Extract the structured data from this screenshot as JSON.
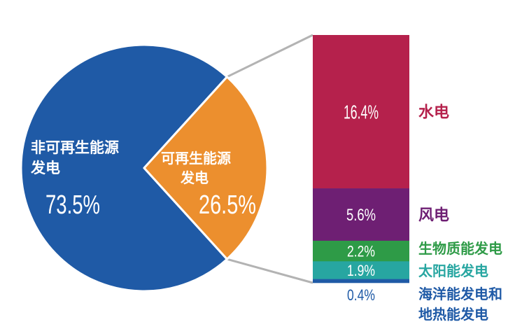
{
  "chart_data": {
    "type": "bar-of-pie",
    "colors": {
      "non_renewable": "#1f5aa6",
      "renewable": "#ec8f2e",
      "connector": "#b3b3b3"
    },
    "pie": {
      "slices": [
        {
          "label_line1": "非可再生能源",
          "label_line2": "发电",
          "value": 73.5,
          "value_label": "73.5%",
          "color": "#1f5aa6"
        },
        {
          "label_line1": "可再生能源",
          "label_line2": "发电",
          "value": 26.5,
          "value_label": "26.5%",
          "color": "#ec8f2e"
        }
      ]
    },
    "bar": {
      "segments": [
        {
          "name": "水电",
          "value": 16.4,
          "value_label": "16.4%",
          "color": "#b5214c",
          "name_color": "#b5214c",
          "value_color": "#ffffff"
        },
        {
          "name": "风电",
          "value": 5.6,
          "value_label": "5.6%",
          "color": "#6e1f73",
          "name_color": "#6e1f73",
          "value_color": "#ffffff"
        },
        {
          "name": "生物质能发电",
          "value": 2.2,
          "value_label": "2.2%",
          "color": "#2e9b47",
          "name_color": "#2e9b47",
          "value_color": "#ffffff"
        },
        {
          "name": "太阳能发电",
          "value": 1.9,
          "value_label": "1.9%",
          "color": "#27a6a1",
          "name_color": "#27a6a1",
          "value_color": "#ffffff"
        },
        {
          "name_line1": "海洋能发电和",
          "name_line2": "地热能发电",
          "value": 0.4,
          "value_label": "0.4%",
          "color": "#1f5aa6",
          "name_color": "#1f5aa6",
          "value_color": "#1f5aa6"
        }
      ]
    }
  }
}
